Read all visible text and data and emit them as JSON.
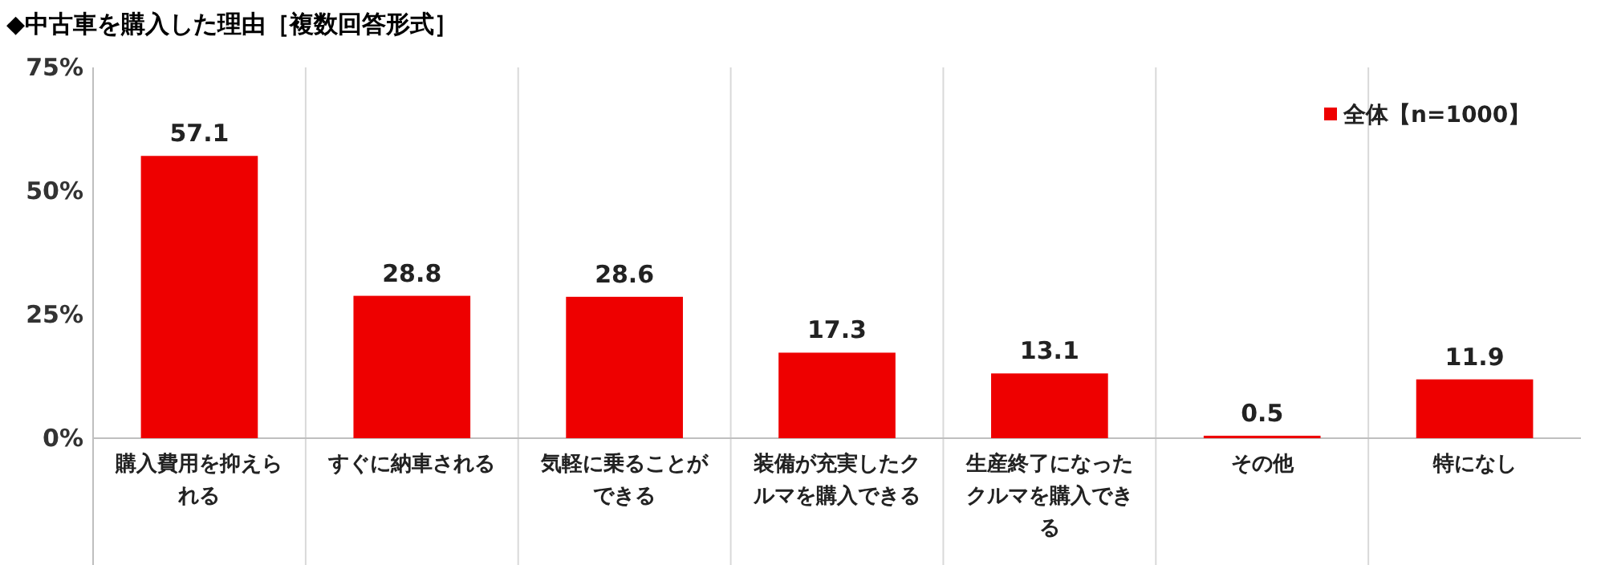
{
  "chart_data": {
    "type": "bar",
    "title": "◆中古車を購入した理由［複数回答形式］",
    "categories": [
      "購入費用を抑えられる",
      "すぐに納車される",
      "気軽に乗ることができる",
      "装備が充実したクルマを購入できる",
      "生産終了になったクルマを購入できる",
      "その他",
      "特になし"
    ],
    "series": [
      {
        "name": "全体【n=1000】",
        "color": "#ee0000",
        "values": [
          57.1,
          28.8,
          28.6,
          17.3,
          13.1,
          0.5,
          11.9
        ]
      }
    ],
    "ylim": [
      0,
      75
    ],
    "yticks": [
      {
        "value": 0,
        "label": "0%"
      },
      {
        "value": 25,
        "label": "25%"
      },
      {
        "value": 50,
        "label": "50%"
      },
      {
        "value": 75,
        "label": "75%"
      }
    ],
    "grid": "x",
    "legend": "top right",
    "data_labels": true
  }
}
